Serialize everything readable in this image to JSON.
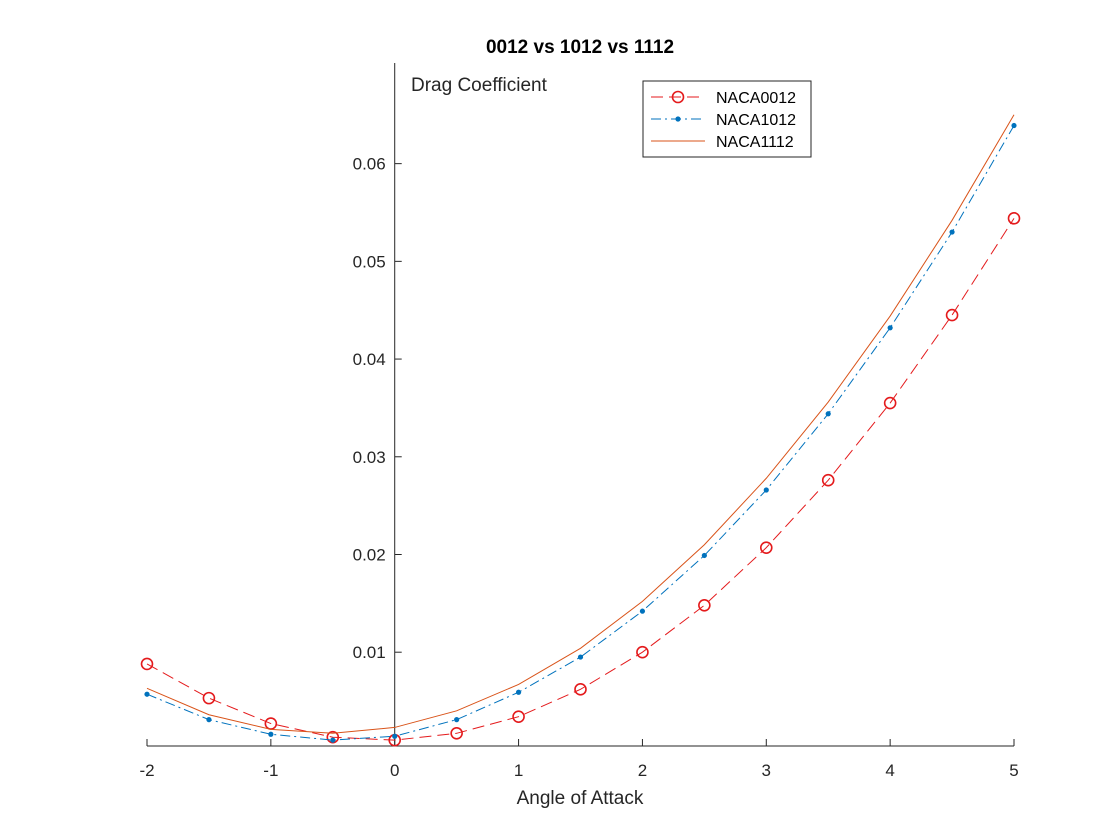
{
  "chart_data": {
    "type": "line",
    "title": "0012 vs 1012 vs 1112",
    "xlabel": "Angle of Attack",
    "ylabel": "",
    "annotation": "Drag Coefficient",
    "xlim": [
      -2,
      5
    ],
    "ylim": [
      0.0004,
      0.0703
    ],
    "xticks": [
      -2,
      -1,
      0,
      1,
      2,
      3,
      4,
      5
    ],
    "yticks": [
      0.01,
      0.02,
      0.03,
      0.04,
      0.05,
      0.06
    ],
    "grid": false,
    "legend_position": "top-right",
    "x": [
      -2,
      -1.5,
      -1,
      -0.5,
      0,
      0.5,
      1,
      1.5,
      2,
      2.5,
      3,
      3.5,
      4,
      4.5,
      5
    ],
    "series": [
      {
        "name": "NACA0012",
        "color": "#e41a1c",
        "line_style": "dashed",
        "marker": "circle",
        "values": [
          0.0088,
          0.0053,
          0.0027,
          0.0013,
          0.001,
          0.0017,
          0.0034,
          0.0062,
          0.01,
          0.0148,
          0.0207,
          0.0276,
          0.0355,
          0.0445,
          0.0544
        ]
      },
      {
        "name": "NACA1012",
        "color": "#0072bd",
        "line_style": "dashdot",
        "marker": "dot",
        "values": [
          0.0057,
          0.0031,
          0.0016,
          0.001,
          0.0014,
          0.0031,
          0.0059,
          0.0095,
          0.0142,
          0.0199,
          0.0266,
          0.0344,
          0.0432,
          0.053,
          0.0639
        ]
      },
      {
        "name": "NACA1112",
        "color": "#d95319",
        "line_style": "solid",
        "marker": "none",
        "values": [
          0.0063,
          0.0036,
          0.0021,
          0.0017,
          0.0023,
          0.004,
          0.0067,
          0.0104,
          0.0152,
          0.021,
          0.0278,
          0.0356,
          0.0444,
          0.0542,
          0.065
        ]
      }
    ]
  }
}
